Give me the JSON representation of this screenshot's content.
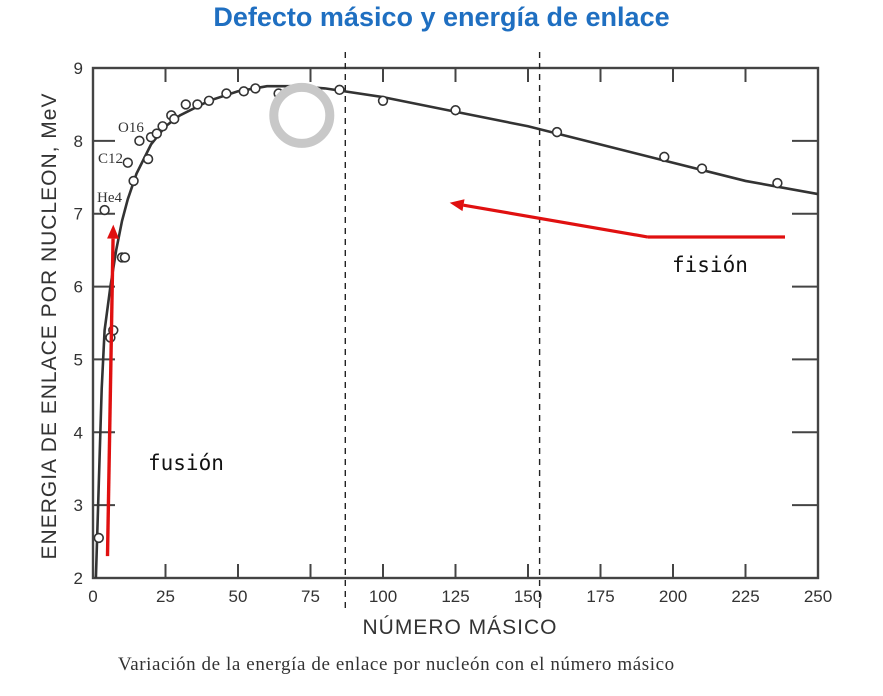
{
  "title": "Defecto másico y energía de enlace",
  "caption": "Variación de la energía de enlace por nucleón con el número másico",
  "annotations": {
    "fusion": "fusión",
    "fision": "fisión",
    "he4": "He4",
    "c12": "C12",
    "o16": "O16"
  },
  "colors": {
    "title": "#1f6fc1",
    "arrow": "#e01010",
    "curve": "#333333",
    "cursor": "#c8c8c8"
  },
  "chart_data": {
    "type": "scatter",
    "xlabel": "NÚMERO MÁSICO",
    "ylabel": "ENERGIA DE ENLACE POR NUCLEON, MeV",
    "xlim": [
      0,
      250
    ],
    "ylim": [
      2,
      9
    ],
    "x_ticks": [
      0,
      25,
      50,
      75,
      100,
      125,
      150,
      175,
      200,
      225,
      250
    ],
    "y_ticks": [
      2,
      3,
      4,
      5,
      6,
      7,
      8,
      9
    ],
    "points": [
      {
        "x": 2,
        "y": 2.55
      },
      {
        "x": 4,
        "y": 7.05
      },
      {
        "x": 6,
        "y": 5.3
      },
      {
        "x": 7,
        "y": 5.4
      },
      {
        "x": 10,
        "y": 6.4
      },
      {
        "x": 11,
        "y": 6.4
      },
      {
        "x": 12,
        "y": 7.7
      },
      {
        "x": 14,
        "y": 7.45
      },
      {
        "x": 16,
        "y": 8.0
      },
      {
        "x": 19,
        "y": 7.75
      },
      {
        "x": 20,
        "y": 8.05
      },
      {
        "x": 22,
        "y": 8.1
      },
      {
        "x": 24,
        "y": 8.2
      },
      {
        "x": 27,
        "y": 8.35
      },
      {
        "x": 28,
        "y": 8.3
      },
      {
        "x": 32,
        "y": 8.5
      },
      {
        "x": 36,
        "y": 8.5
      },
      {
        "x": 40,
        "y": 8.55
      },
      {
        "x": 46,
        "y": 8.65
      },
      {
        "x": 52,
        "y": 8.68
      },
      {
        "x": 56,
        "y": 8.72
      },
      {
        "x": 64,
        "y": 8.65
      },
      {
        "x": 85,
        "y": 8.7
      },
      {
        "x": 100,
        "y": 8.55
      },
      {
        "x": 125,
        "y": 8.42
      },
      {
        "x": 160,
        "y": 8.12
      },
      {
        "x": 197,
        "y": 7.78
      },
      {
        "x": 210,
        "y": 7.62
      },
      {
        "x": 236,
        "y": 7.42
      }
    ],
    "curve": [
      {
        "x": 1,
        "y": 2.0
      },
      {
        "x": 2,
        "y": 3.3
      },
      {
        "x": 3,
        "y": 4.6
      },
      {
        "x": 4,
        "y": 5.4
      },
      {
        "x": 6,
        "y": 6.0
      },
      {
        "x": 8,
        "y": 6.5
      },
      {
        "x": 10,
        "y": 6.9
      },
      {
        "x": 12,
        "y": 7.2
      },
      {
        "x": 15,
        "y": 7.55
      },
      {
        "x": 20,
        "y": 7.95
      },
      {
        "x": 25,
        "y": 8.2
      },
      {
        "x": 30,
        "y": 8.35
      },
      {
        "x": 40,
        "y": 8.55
      },
      {
        "x": 50,
        "y": 8.68
      },
      {
        "x": 60,
        "y": 8.75
      },
      {
        "x": 70,
        "y": 8.75
      },
      {
        "x": 80,
        "y": 8.72
      },
      {
        "x": 100,
        "y": 8.6
      },
      {
        "x": 125,
        "y": 8.4
      },
      {
        "x": 150,
        "y": 8.2
      },
      {
        "x": 175,
        "y": 7.95
      },
      {
        "x": 200,
        "y": 7.7
      },
      {
        "x": 225,
        "y": 7.45
      },
      {
        "x": 250,
        "y": 7.27
      }
    ],
    "dashed_lines_x": [
      87,
      154
    ],
    "arrows": [
      {
        "from": {
          "x": 5,
          "y": 2.3
        },
        "to": {
          "x": 7,
          "y": 6.85
        }
      },
      {
        "from": {
          "x": 240,
          "y": 6.68
        },
        "to": {
          "x": 123,
          "y": 7.15
        }
      }
    ],
    "cursor_ring": {
      "x": 72,
      "y": 8.35
    },
    "grid": false,
    "legend": "none"
  }
}
